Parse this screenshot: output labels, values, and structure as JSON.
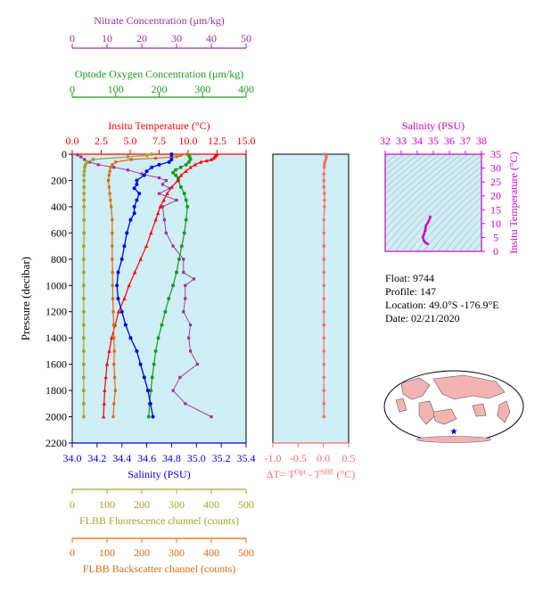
{
  "colors": {
    "nitrate": "#a02ea0",
    "oxygen": "#1a9c1a",
    "temperature": "#ff0000",
    "salinity": "#0000ee",
    "fluorescence": "#a6a62a",
    "backscatter": "#e06a10",
    "delta": "#ff6b6b",
    "ts_axis": "#cc00cc",
    "plot_bg": "#cfeef6"
  },
  "info": {
    "float_line": "Float:  9744",
    "profile_line": "Profile:  147",
    "location_line": "Location:  49.0°S  -176.9°E",
    "date_line": "Date:  02/21/2020"
  },
  "chart_data": [
    {
      "type": "line",
      "panel": "main-profile",
      "ylabel": "Pressure (decibar)",
      "ylim": [
        2200,
        0
      ],
      "yticks": [
        0,
        200,
        400,
        600,
        800,
        1000,
        1200,
        1400,
        1600,
        1800,
        2000,
        2200
      ],
      "axes": {
        "nitrate": {
          "label": "Nitrate Concentration (μm/kg)",
          "range": [
            0,
            50
          ],
          "ticks": [
            0,
            10,
            20,
            30,
            40,
            50
          ]
        },
        "oxygen": {
          "label": "Optode Oxygen Concentration (μm/kg)",
          "range": [
            0,
            400
          ],
          "ticks": [
            0,
            100,
            200,
            300,
            400
          ]
        },
        "temperature": {
          "label": "Insitu Temperature (°C)",
          "range": [
            0,
            15
          ],
          "ticks": [
            "0.0",
            "2.5",
            "5.0",
            "7.5",
            "10.0",
            "12.5",
            "15.0"
          ]
        },
        "salinity": {
          "label": "Salinity (PSU)",
          "range": [
            34.0,
            35.4
          ],
          "ticks": [
            "34.0",
            "34.2",
            "34.4",
            "34.6",
            "34.8",
            "35.0",
            "35.2",
            "35.4"
          ]
        },
        "fluorescence": {
          "label": "FLBB Fluorescence channel (counts)",
          "range": [
            0,
            500
          ],
          "ticks": [
            0,
            100,
            200,
            300,
            400,
            500
          ]
        },
        "backscatter": {
          "label": "FLBB Backscatter channel (counts)",
          "range": [
            0,
            500
          ],
          "ticks": [
            0,
            100,
            200,
            300,
            400,
            500
          ]
        }
      },
      "series": [
        {
          "key": "nitrate",
          "name": "Nitrate Concentration (μm/kg)",
          "p": [
            5,
            20,
            40,
            60,
            80,
            100,
            120,
            150,
            180,
            200,
            230,
            260,
            300,
            350,
            400,
            500,
            600,
            700,
            800,
            900,
            950,
            1000,
            1100,
            1200,
            1300,
            1400,
            1500,
            1600,
            1700,
            1800,
            1900,
            2000
          ],
          "x": [
            1.5,
            2.5,
            3.5,
            5.0,
            7.5,
            12.0,
            16.0,
            20.0,
            25.0,
            27.0,
            26.0,
            28.0,
            25.0,
            30.0,
            26.0,
            26.5,
            27.0,
            29.0,
            32.0,
            32.0,
            35.0,
            32.5,
            32.5,
            32.0,
            34.0,
            33.5,
            34.0,
            36.0,
            31.0,
            29.0,
            32.5,
            40.0
          ]
        },
        {
          "key": "oxygen",
          "name": "Optode Oxygen Concentration (μm/kg)",
          "p": [
            5,
            20,
            40,
            60,
            80,
            100,
            120,
            140,
            160,
            180,
            200,
            250,
            300,
            350,
            400,
            500,
            600,
            700,
            800,
            900,
            1000,
            1100,
            1200,
            1300,
            1400,
            1500,
            1600,
            1700,
            1800,
            1900,
            2000
          ],
          "x": [
            268,
            270,
            272,
            268,
            262,
            250,
            238,
            232,
            238,
            244,
            244,
            250,
            258,
            262,
            265,
            262,
            258,
            252,
            246,
            240,
            232,
            222,
            214,
            206,
            198,
            192,
            188,
            184,
            181,
            178,
            176
          ]
        },
        {
          "key": "temperature",
          "name": "Insitu Temperature (°C)",
          "p": [
            0,
            10,
            20,
            30,
            40,
            50,
            60,
            80,
            100,
            130,
            160,
            200,
            250,
            300,
            350,
            400,
            450,
            500,
            600,
            700,
            800,
            900,
            1000,
            1100,
            1200,
            1300,
            1400,
            1500,
            1600,
            1700,
            1800,
            1900,
            2000
          ],
          "x": [
            12.5,
            12.4,
            12.3,
            12.2,
            12.0,
            11.6,
            11.1,
            10.6,
            10.2,
            9.8,
            9.4,
            9.1,
            8.6,
            8.2,
            7.9,
            7.6,
            7.4,
            7.2,
            6.8,
            6.4,
            5.9,
            5.4,
            4.9,
            4.5,
            4.0,
            3.7,
            3.4,
            3.2,
            3.0,
            2.9,
            2.8,
            2.75,
            2.7
          ]
        },
        {
          "key": "salinity",
          "name": "Salinity (PSU)",
          "p": [
            0,
            20,
            40,
            60,
            80,
            100,
            130,
            160,
            200,
            230,
            260,
            300,
            350,
            400,
            450,
            500,
            600,
            700,
            800,
            900,
            1000,
            1100,
            1200,
            1300,
            1400,
            1500,
            1600,
            1700,
            1800,
            1900,
            2000
          ],
          "x": [
            34.8,
            34.8,
            34.8,
            34.78,
            34.7,
            34.64,
            34.6,
            34.58,
            34.52,
            34.52,
            34.5,
            34.54,
            34.52,
            34.5,
            34.5,
            34.47,
            34.44,
            34.42,
            34.4,
            34.37,
            34.36,
            34.37,
            34.4,
            34.43,
            34.47,
            34.52,
            34.55,
            34.58,
            34.61,
            34.63,
            34.65
          ]
        },
        {
          "key": "fluorescence",
          "name": "FLBB Fluorescence channel (counts)",
          "p": [
            0,
            10,
            20,
            40,
            60,
            80,
            100,
            130,
            160,
            200,
            250,
            300,
            350,
            400,
            500,
            600,
            700,
            800,
            900,
            1000,
            1100,
            1200,
            1300,
            1400,
            1500,
            1600,
            1700,
            1800,
            1900,
            2000
          ],
          "x": [
            228,
            215,
            160,
            60,
            42,
            38,
            36,
            35,
            34,
            34,
            34,
            34,
            34,
            34,
            34,
            34,
            33,
            33,
            33,
            33,
            33,
            33,
            33,
            33,
            33,
            33,
            33,
            33,
            33,
            33
          ]
        },
        {
          "key": "backscatter",
          "name": "FLBB Backscatter channel (counts)",
          "p": [
            0,
            10,
            20,
            30,
            40,
            60,
            80,
            100,
            130,
            160,
            200,
            250,
            300,
            350,
            400,
            500,
            600,
            700,
            800,
            900,
            1000,
            1100,
            1200,
            1300,
            1400,
            1500,
            1600,
            1700,
            1800,
            1900,
            2000
          ],
          "x": [
            330,
            310,
            300,
            240,
            170,
            125,
            115,
            110,
            108,
            106,
            104,
            106,
            108,
            110,
            112,
            115,
            115,
            115,
            115,
            116,
            116,
            117,
            118,
            119,
            120,
            121,
            120,
            122,
            124,
            120,
            118
          ]
        }
      ]
    },
    {
      "type": "line",
      "panel": "delta-temperature",
      "xlabel": "ΔT= T^Opt - T^SBE (°C)",
      "xlim": [
        -1.0,
        0.5
      ],
      "xticks": [
        "-1.0",
        "-0.5",
        "0.0",
        "0.5"
      ],
      "ylim": [
        2200,
        0
      ],
      "series": [
        {
          "name": "ΔT",
          "p": [
            0,
            20,
            40,
            60,
            80,
            100,
            150,
            200,
            250,
            300,
            350,
            400,
            500,
            600,
            700,
            800,
            900,
            1000,
            1100,
            1200,
            1300,
            1400,
            1500,
            1600,
            1700,
            1800,
            1900,
            2000
          ],
          "x": [
            0.02,
            0.06,
            0.05,
            0.03,
            0.02,
            0.02,
            0.01,
            0.01,
            0.01,
            0.02,
            0.02,
            0.02,
            0.01,
            0.01,
            0.01,
            0.01,
            0.01,
            0.01,
            0.01,
            0.01,
            0.01,
            0.01,
            0.01,
            0.01,
            0.01,
            0.01,
            0.01,
            0.01
          ]
        }
      ]
    },
    {
      "type": "scatter",
      "panel": "ts-diagram",
      "title": "Salinity (PSU)",
      "ylabel": "Insitu Temperature (°C)",
      "xlim": [
        32,
        38
      ],
      "ylim": [
        0,
        35
      ],
      "xticks": [
        32,
        33,
        34,
        35,
        36,
        37,
        38
      ],
      "yticks": [
        0,
        5,
        10,
        15,
        20,
        25,
        30,
        35
      ],
      "series": [
        {
          "name": "T-S",
          "s": [
            34.8,
            34.79,
            34.72,
            34.64,
            34.56,
            34.52,
            34.5,
            34.5,
            34.47,
            34.44,
            34.4,
            34.37,
            34.36,
            34.4,
            34.47,
            34.55,
            34.61,
            34.65
          ],
          "t": [
            12.5,
            12.0,
            11.0,
            10.2,
            9.4,
            8.6,
            7.9,
            7.4,
            7.2,
            6.4,
            5.9,
            5.4,
            4.9,
            4.0,
            3.4,
            3.0,
            2.8,
            2.7
          ]
        }
      ]
    }
  ]
}
